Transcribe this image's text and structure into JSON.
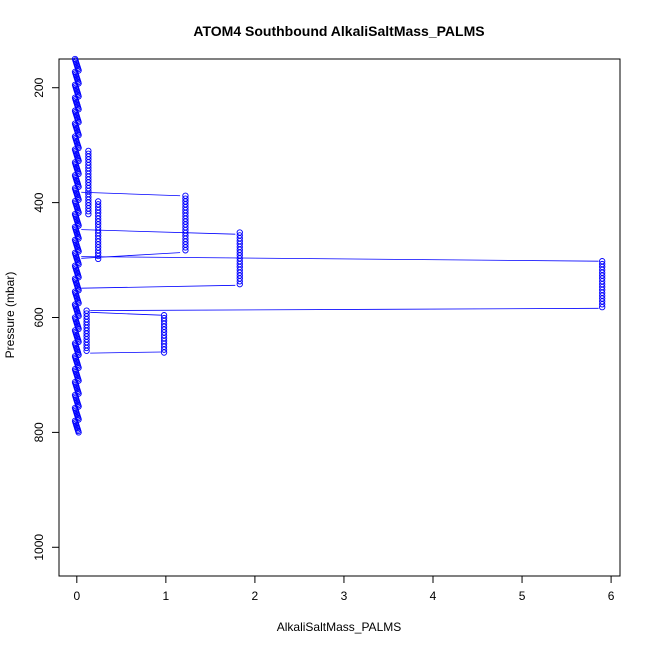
{
  "chart_data": {
    "type": "scatter",
    "title": "ATOM4 Southbound AlkaliSaltMass_PALMS",
    "xlabel": "AlkaliSaltMass_PALMS",
    "ylabel": "Pressure (mbar)",
    "xlim": [
      -0.2,
      6.1
    ],
    "ylim": [
      150,
      1050
    ],
    "y_reversed": true,
    "x_ticks": [
      0,
      1,
      2,
      3,
      4,
      5,
      6
    ],
    "y_ticks": [
      200,
      400,
      600,
      800,
      1000
    ],
    "grid": false,
    "legend": "none",
    "colors": {
      "points": "#0000ff",
      "line": "#0000ff",
      "axes": "#000000"
    },
    "baseline_cluster": {
      "x": 0,
      "pressure_range": [
        150,
        802
      ],
      "spread_x": 0.04
    },
    "clusters": [
      {
        "x": 0.13,
        "pressure_range": [
          310,
          420
        ]
      },
      {
        "x": 0.24,
        "pressure_range": [
          398,
          498
        ]
      },
      {
        "x": 1.22,
        "pressure_range": [
          388,
          487
        ]
      },
      {
        "x": 1.83,
        "pressure_range": [
          452,
          544
        ]
      },
      {
        "x": 5.9,
        "pressure_range": [
          502,
          584
        ]
      },
      {
        "x": 0.11,
        "pressure_range": [
          588,
          660
        ]
      },
      {
        "x": 0.98,
        "pressure_range": [
          596,
          662
        ]
      }
    ],
    "line_segments": [
      {
        "from": [
          0.05,
          382
        ],
        "to": [
          1.16,
          388
        ]
      },
      {
        "from": [
          0.05,
          447
        ],
        "to": [
          1.78,
          455
        ]
      },
      {
        "from": [
          0.05,
          497
        ],
        "to": [
          1.16,
          487
        ]
      },
      {
        "from": [
          0.05,
          494
        ],
        "to": [
          5.86,
          502
        ]
      },
      {
        "from": [
          0.05,
          549
        ],
        "to": [
          1.78,
          544
        ]
      },
      {
        "from": [
          0.15,
          588
        ],
        "to": [
          5.86,
          584
        ]
      },
      {
        "from": [
          0.15,
          591
        ],
        "to": [
          0.95,
          596
        ]
      },
      {
        "from": [
          0.15,
          662
        ],
        "to": [
          0.95,
          660
        ]
      }
    ]
  }
}
